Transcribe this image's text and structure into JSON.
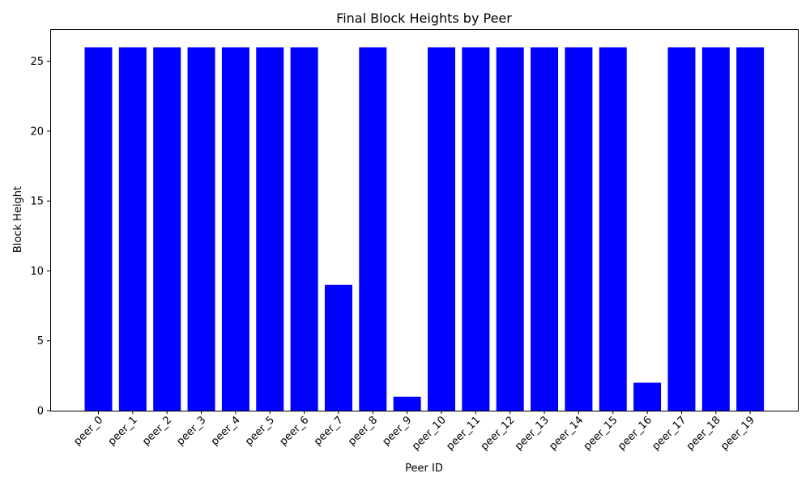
{
  "chart_data": {
    "type": "bar",
    "title": "Final Block Heights by Peer",
    "xlabel": "Peer ID",
    "ylabel": "Block Height",
    "categories": [
      "peer_0",
      "peer_1",
      "peer_2",
      "peer_3",
      "peer_4",
      "peer_5",
      "peer_6",
      "peer_7",
      "peer_8",
      "peer_9",
      "peer_10",
      "peer_11",
      "peer_12",
      "peer_13",
      "peer_14",
      "peer_15",
      "peer_16",
      "peer_17",
      "peer_18",
      "peer_19"
    ],
    "values": [
      26,
      26,
      26,
      26,
      26,
      26,
      26,
      9,
      26,
      1,
      26,
      26,
      26,
      26,
      26,
      26,
      2,
      26,
      26,
      26
    ],
    "ylim": [
      0,
      27.3
    ],
    "yticks": [
      0,
      5,
      10,
      15,
      20,
      25
    ],
    "bar_color": "#0000ff",
    "grid": false,
    "legend": "none"
  }
}
